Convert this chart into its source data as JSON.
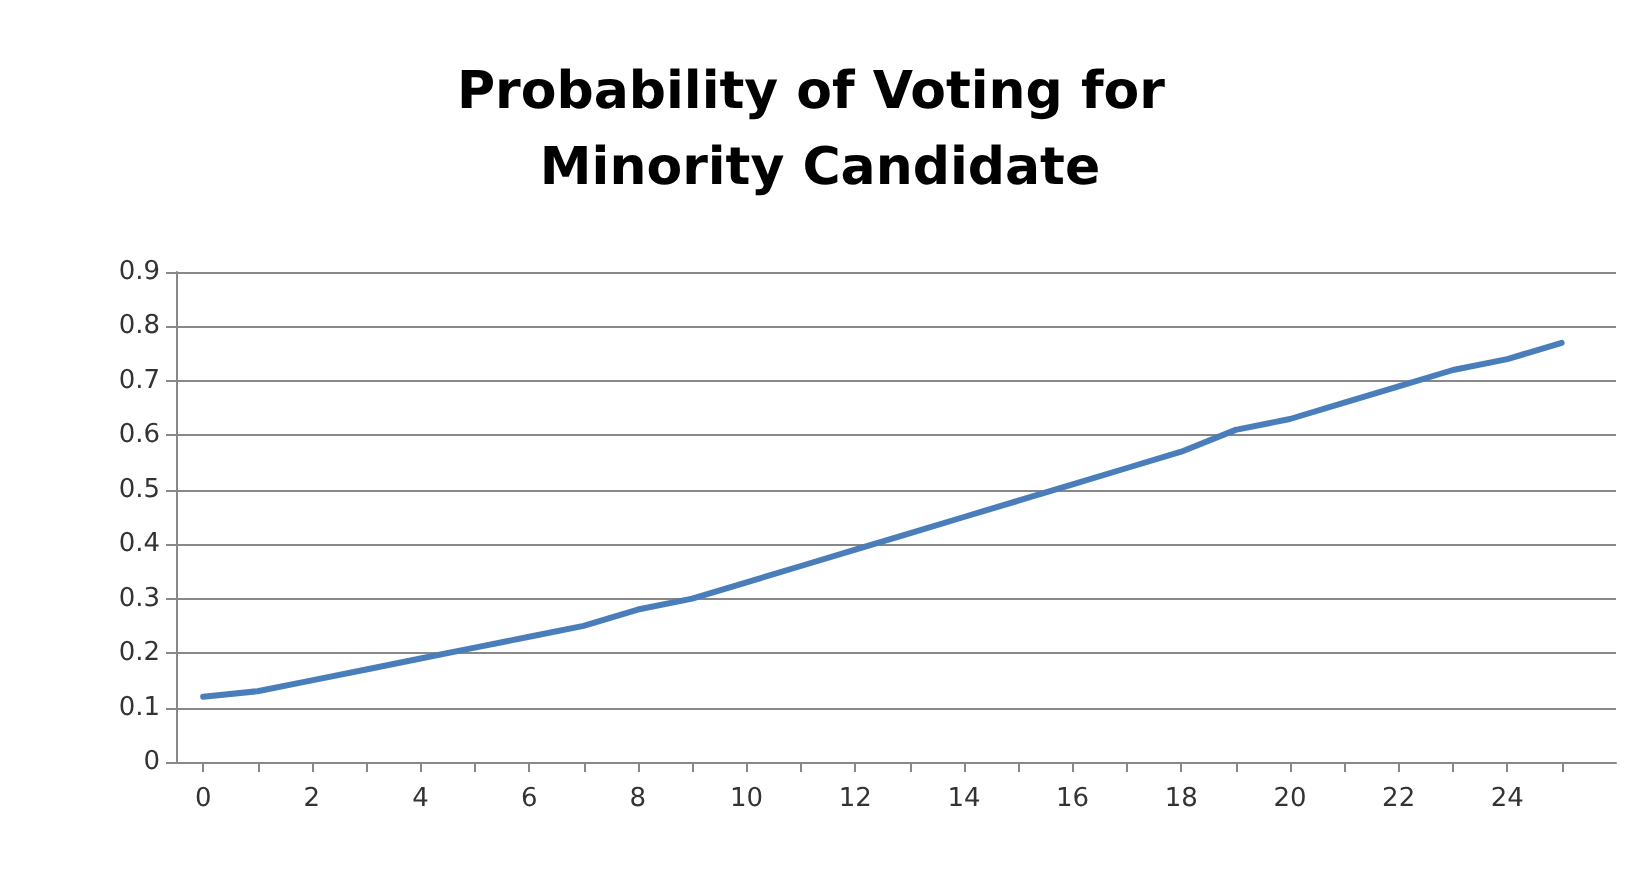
{
  "chart_data": {
    "type": "line",
    "title": "Probability of Voting for Minority Candidate",
    "x": [
      0,
      1,
      2,
      3,
      4,
      5,
      6,
      7,
      8,
      9,
      10,
      11,
      12,
      13,
      14,
      15,
      16,
      17,
      18,
      19,
      20,
      21,
      22,
      23,
      24,
      25
    ],
    "series": [
      {
        "color": "#4a7ebb",
        "values": [
          0.12,
          0.13,
          0.15,
          0.17,
          0.19,
          0.21,
          0.23,
          0.25,
          0.28,
          0.3,
          0.33,
          0.36,
          0.39,
          0.42,
          0.45,
          0.48,
          0.51,
          0.54,
          0.57,
          0.61,
          0.63,
          0.66,
          0.69,
          0.72,
          0.74,
          0.77
        ]
      }
    ],
    "xlim": [
      -0.5,
      26
    ],
    "xticks": [
      0,
      {
        "value": 1,
        "label": null
      },
      2,
      {
        "value": 3,
        "label": null
      },
      4,
      {
        "value": 5,
        "label": null
      },
      6,
      {
        "value": 7,
        "label": null
      },
      8,
      {
        "value": 9,
        "label": null
      },
      10,
      {
        "value": 11,
        "label": null
      },
      12,
      {
        "value": 13,
        "label": null
      },
      14,
      {
        "value": 15,
        "label": null
      },
      16,
      {
        "value": 17,
        "label": null
      },
      18,
      {
        "value": 19,
        "label": null
      },
      20,
      {
        "value": 21,
        "label": null
      },
      22,
      {
        "value": 23,
        "label": null
      },
      24,
      {
        "value": 25,
        "label": null
      }
    ],
    "ylim": [
      0,
      0.9
    ],
    "yticks": [
      0,
      0.1,
      0.2,
      0.3,
      0.4,
      0.5,
      0.6,
      0.7,
      0.8,
      0.9
    ],
    "grid": "y",
    "marker": "none",
    "line_style": "solid"
  }
}
